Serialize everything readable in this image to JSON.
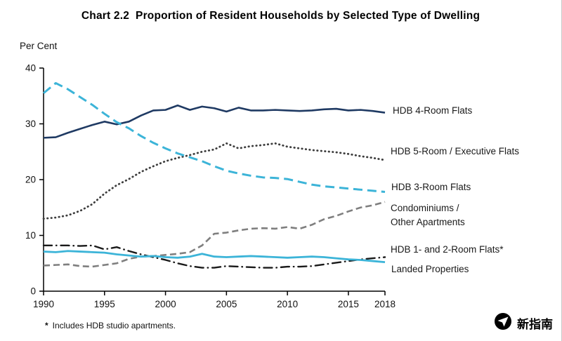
{
  "chart": {
    "title": "Chart 2.2  Proportion of Resident Households by Selected Type of Dwelling",
    "y_unit": "Per Cent",
    "footnote_marker": "*",
    "footnote_text": "Includes HDB studio apartments."
  },
  "brand": {
    "name": "新指南"
  },
  "chart_data": {
    "type": "line",
    "title": "Chart 2.2 Proportion of Resident Households by Selected Type of Dwelling",
    "xlabel": "",
    "ylabel": "Per Cent",
    "xlim": [
      1990,
      2018
    ],
    "ylim": [
      0,
      40
    ],
    "x_ticks": [
      1990,
      1995,
      2000,
      2005,
      2010,
      2015,
      2018
    ],
    "y_ticks": [
      0,
      10,
      20,
      30,
      40
    ],
    "grid": false,
    "legend_position": "right-annotations",
    "x": [
      1990,
      1991,
      1992,
      1993,
      1994,
      1995,
      1996,
      1997,
      1998,
      1999,
      2000,
      2001,
      2002,
      2003,
      2004,
      2005,
      2006,
      2007,
      2008,
      2009,
      2010,
      2011,
      2012,
      2013,
      2014,
      2015,
      2016,
      2017,
      2018
    ],
    "series": [
      {
        "name": "HDB 4-Room Flats",
        "color": "#1f3a63",
        "style": "solid",
        "width": 2.6,
        "values": [
          27.5,
          27.6,
          28.4,
          29.1,
          29.8,
          30.4,
          29.9,
          30.4,
          31.5,
          32.4,
          32.5,
          33.3,
          32.5,
          33.1,
          32.8,
          32.2,
          32.9,
          32.4,
          32.4,
          32.5,
          32.4,
          32.3,
          32.4,
          32.6,
          32.7,
          32.4,
          32.5,
          32.3,
          32.0
        ]
      },
      {
        "name": "HDB 5-Room / Executive Flats",
        "color": "#3d3d3d",
        "style": "dotted",
        "width": 2.8,
        "values": [
          13.0,
          13.2,
          13.6,
          14.4,
          15.6,
          17.5,
          19.0,
          20.1,
          21.4,
          22.4,
          23.3,
          23.9,
          24.4,
          25.0,
          25.4,
          26.5,
          25.6,
          26.0,
          26.2,
          26.5,
          25.9,
          25.6,
          25.3,
          25.1,
          24.9,
          24.6,
          24.2,
          23.9,
          23.5
        ]
      },
      {
        "name": "HDB 3-Room Flats",
        "color": "#3cb4d8",
        "style": "longdash",
        "width": 3,
        "values": [
          35.5,
          37.3,
          36.2,
          34.8,
          33.4,
          31.8,
          30.3,
          29.2,
          27.8,
          26.6,
          25.6,
          24.7,
          24.0,
          23.3,
          22.4,
          21.6,
          21.1,
          20.7,
          20.4,
          20.3,
          20.1,
          19.6,
          19.1,
          18.8,
          18.6,
          18.4,
          18.2,
          18.0,
          17.8
        ]
      },
      {
        "name": "Condominiums /\nOther Apartments",
        "color": "#7f7f7f",
        "style": "dashed",
        "width": 2.6,
        "values": [
          4.6,
          4.7,
          4.8,
          4.5,
          4.4,
          4.7,
          5.0,
          5.8,
          6.2,
          6.3,
          6.5,
          6.7,
          7.0,
          8.2,
          10.3,
          10.5,
          10.9,
          11.2,
          11.3,
          11.2,
          11.5,
          11.2,
          11.9,
          12.9,
          13.5,
          14.3,
          15.0,
          15.4,
          16.0
        ]
      },
      {
        "name": "HDB 1- and 2-Room Flats*",
        "color": "#1a1a1a",
        "style": "dashdot",
        "width": 2.4,
        "values": [
          8.2,
          8.2,
          8.2,
          8.1,
          8.2,
          7.5,
          7.9,
          7.2,
          6.6,
          6.1,
          5.6,
          5.0,
          4.5,
          4.2,
          4.2,
          4.5,
          4.4,
          4.3,
          4.2,
          4.2,
          4.4,
          4.4,
          4.5,
          4.8,
          5.1,
          5.4,
          5.7,
          5.9,
          6.1
        ]
      },
      {
        "name": "Landed Properties",
        "color": "#3cb4d8",
        "style": "solid",
        "width": 2.8,
        "values": [
          7.1,
          7.0,
          7.2,
          7.1,
          7.0,
          6.9,
          6.6,
          6.4,
          6.2,
          6.3,
          6.1,
          6.0,
          6.2,
          6.7,
          6.2,
          6.1,
          6.2,
          6.3,
          6.2,
          6.1,
          6.0,
          6.1,
          6.2,
          6.1,
          5.9,
          5.7,
          5.6,
          5.4,
          5.2
        ]
      }
    ]
  }
}
